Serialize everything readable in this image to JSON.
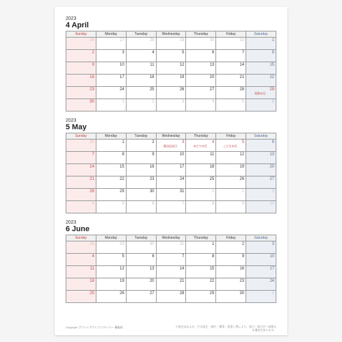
{
  "page": {
    "background_color": "#ffffff",
    "drop_color": "#f5f5f5"
  },
  "dayHeaders": [
    "Sunday",
    "Monday",
    "Tuesday",
    "Wednesday",
    "Thursday",
    "Friday",
    "Saturday"
  ],
  "colors": {
    "sunday_bg": "#fbeceb",
    "saturday_bg": "#ecf0f5",
    "sunday_text": "#c24646",
    "saturday_text": "#5a7090",
    "holiday_text": "#c24646",
    "other_month_text": "#bfbfbf",
    "border": "#999999",
    "header_bg": "#f0f0f0"
  },
  "months": [
    {
      "year": "2023",
      "title": "4 April",
      "weeks": [
        [
          {
            "d": "26",
            "o": true
          },
          {
            "d": "27",
            "o": true
          },
          {
            "d": "28",
            "o": true
          },
          {
            "d": "29",
            "o": true
          },
          {
            "d": "30",
            "o": true
          },
          {
            "d": "31",
            "o": true
          },
          {
            "d": "1"
          }
        ],
        [
          {
            "d": "2"
          },
          {
            "d": "3"
          },
          {
            "d": "4"
          },
          {
            "d": "5"
          },
          {
            "d": "6"
          },
          {
            "d": "7"
          },
          {
            "d": "8"
          }
        ],
        [
          {
            "d": "9"
          },
          {
            "d": "10"
          },
          {
            "d": "11"
          },
          {
            "d": "12"
          },
          {
            "d": "13"
          },
          {
            "d": "14"
          },
          {
            "d": "15"
          }
        ],
        [
          {
            "d": "16"
          },
          {
            "d": "17"
          },
          {
            "d": "18"
          },
          {
            "d": "19"
          },
          {
            "d": "20"
          },
          {
            "d": "21"
          },
          {
            "d": "22"
          }
        ],
        [
          {
            "d": "23"
          },
          {
            "d": "24"
          },
          {
            "d": "25"
          },
          {
            "d": "26"
          },
          {
            "d": "27"
          },
          {
            "d": "28"
          },
          {
            "d": "29",
            "hol": true,
            "label": "昭和の日"
          }
        ],
        [
          {
            "d": "30"
          },
          {
            "d": "1",
            "o": true
          },
          {
            "d": "2",
            "o": true
          },
          {
            "d": "3",
            "o": true
          },
          {
            "d": "4",
            "o": true
          },
          {
            "d": "5",
            "o": true
          },
          {
            "d": "6",
            "o": true
          }
        ]
      ]
    },
    {
      "year": "2023",
      "title": "5 May",
      "weeks": [
        [
          {
            "d": "30",
            "o": true
          },
          {
            "d": "1"
          },
          {
            "d": "2"
          },
          {
            "d": "3",
            "hol": true,
            "label": "憲法記念日"
          },
          {
            "d": "4",
            "hol": true,
            "label": "みどりの日"
          },
          {
            "d": "5",
            "hol": true,
            "label": "こどもの日"
          },
          {
            "d": "6"
          }
        ],
        [
          {
            "d": "7"
          },
          {
            "d": "8"
          },
          {
            "d": "9"
          },
          {
            "d": "10"
          },
          {
            "d": "11"
          },
          {
            "d": "12"
          },
          {
            "d": "13"
          }
        ],
        [
          {
            "d": "14"
          },
          {
            "d": "15"
          },
          {
            "d": "16"
          },
          {
            "d": "17"
          },
          {
            "d": "18"
          },
          {
            "d": "19"
          },
          {
            "d": "20"
          }
        ],
        [
          {
            "d": "21"
          },
          {
            "d": "22"
          },
          {
            "d": "23"
          },
          {
            "d": "24"
          },
          {
            "d": "25"
          },
          {
            "d": "26"
          },
          {
            "d": "27"
          }
        ],
        [
          {
            "d": "28"
          },
          {
            "d": "29"
          },
          {
            "d": "30"
          },
          {
            "d": "31"
          },
          {
            "d": "1",
            "o": true
          },
          {
            "d": "2",
            "o": true
          },
          {
            "d": "3",
            "o": true
          }
        ],
        [
          {
            "d": "4",
            "o": true
          },
          {
            "d": "5",
            "o": true
          },
          {
            "d": "6",
            "o": true
          },
          {
            "d": "7",
            "o": true
          },
          {
            "d": "8",
            "o": true
          },
          {
            "d": "9",
            "o": true
          },
          {
            "d": "10",
            "o": true
          }
        ]
      ]
    },
    {
      "year": "2023",
      "title": "6 June",
      "weeks": [
        [
          {
            "d": "28",
            "o": true
          },
          {
            "d": "29",
            "o": true
          },
          {
            "d": "30",
            "o": true
          },
          {
            "d": "31",
            "o": true
          },
          {
            "d": "1"
          },
          {
            "d": "2"
          },
          {
            "d": "3"
          }
        ],
        [
          {
            "d": "4"
          },
          {
            "d": "5"
          },
          {
            "d": "6"
          },
          {
            "d": "7"
          },
          {
            "d": "8"
          },
          {
            "d": "9"
          },
          {
            "d": "10"
          }
        ],
        [
          {
            "d": "11"
          },
          {
            "d": "12"
          },
          {
            "d": "13"
          },
          {
            "d": "14"
          },
          {
            "d": "15"
          },
          {
            "d": "16"
          },
          {
            "d": "17"
          }
        ],
        [
          {
            "d": "18"
          },
          {
            "d": "19"
          },
          {
            "d": "20"
          },
          {
            "d": "21"
          },
          {
            "d": "22"
          },
          {
            "d": "23"
          },
          {
            "d": "24"
          }
        ],
        [
          {
            "d": "25"
          },
          {
            "d": "26"
          },
          {
            "d": "27"
          },
          {
            "d": "28"
          },
          {
            "d": "29"
          },
          {
            "d": "30"
          },
          {
            "d": "1",
            "o": true
          }
        ]
      ]
    }
  ],
  "footer": {
    "copyright": "Copyright プリントアウトファクトリー 事務局",
    "note": "※祝日法および、その改正・施行・運用・見直し等により、祝日・休日が一部異なる場合があります。"
  }
}
